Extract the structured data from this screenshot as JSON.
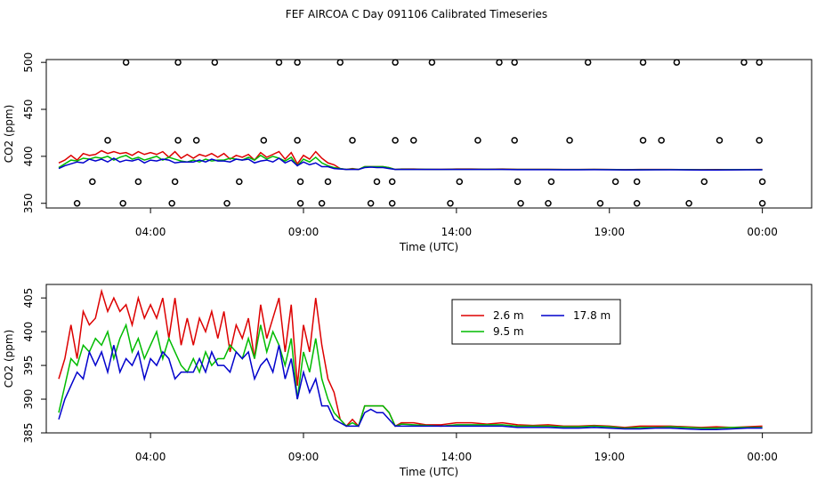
{
  "title": "FEF AIRCOA C  Day 091106  Calibrated Timeseries",
  "chart_data": [
    {
      "type": "scatter",
      "xlabel": "Time (UTC)",
      "ylabel": "CO2 (ppm)",
      "xlim": [
        0,
        24
      ],
      "ylim": [
        345,
        503
      ],
      "x_ticks": [
        3,
        8,
        13,
        18,
        23
      ],
      "x_tick_labels": [
        "04:00",
        "09:00",
        "14:00",
        "19:00",
        "00:00"
      ],
      "y_ticks": [
        350,
        400,
        450,
        500
      ],
      "y_tick_labels": [
        "350",
        "400",
        "450",
        "500"
      ],
      "points": [
        [
          2.2,
          500
        ],
        [
          3.9,
          500
        ],
        [
          5.1,
          500
        ],
        [
          7.2,
          500
        ],
        [
          7.8,
          500
        ],
        [
          9.2,
          500
        ],
        [
          11.0,
          500
        ],
        [
          12.2,
          500
        ],
        [
          14.4,
          500
        ],
        [
          14.9,
          500
        ],
        [
          17.3,
          500
        ],
        [
          19.1,
          500
        ],
        [
          20.2,
          500
        ],
        [
          22.4,
          500
        ],
        [
          22.9,
          500
        ],
        [
          1.6,
          417
        ],
        [
          3.9,
          417
        ],
        [
          4.5,
          417
        ],
        [
          6.7,
          417
        ],
        [
          7.8,
          417
        ],
        [
          9.6,
          417
        ],
        [
          11.0,
          417
        ],
        [
          11.6,
          417
        ],
        [
          13.7,
          417
        ],
        [
          14.9,
          417
        ],
        [
          16.7,
          417
        ],
        [
          19.1,
          417
        ],
        [
          19.7,
          417
        ],
        [
          21.6,
          417
        ],
        [
          22.9,
          417
        ],
        [
          1.1,
          373
        ],
        [
          2.6,
          373
        ],
        [
          3.8,
          373
        ],
        [
          5.9,
          373
        ],
        [
          7.9,
          373
        ],
        [
          8.8,
          373
        ],
        [
          10.4,
          373
        ],
        [
          10.9,
          373
        ],
        [
          13.1,
          373
        ],
        [
          15.0,
          373
        ],
        [
          16.1,
          373
        ],
        [
          18.2,
          373
        ],
        [
          18.9,
          373
        ],
        [
          21.1,
          373
        ],
        [
          23.0,
          373
        ],
        [
          0.6,
          350
        ],
        [
          2.1,
          350
        ],
        [
          3.7,
          350
        ],
        [
          5.5,
          350
        ],
        [
          7.9,
          350
        ],
        [
          8.6,
          350
        ],
        [
          10.2,
          350
        ],
        [
          10.9,
          350
        ],
        [
          12.8,
          350
        ],
        [
          15.1,
          350
        ],
        [
          16.0,
          350
        ],
        [
          17.7,
          350
        ],
        [
          18.9,
          350
        ],
        [
          20.6,
          350
        ],
        [
          23.0,
          350
        ]
      ],
      "series": [
        {
          "name": "2.6 m",
          "color": "#dd0000"
        },
        {
          "name": "9.5 m",
          "color": "#00bb00"
        },
        {
          "name": "17.8 m",
          "color": "#0000cc"
        }
      ]
    },
    {
      "type": "line",
      "xlabel": "Time (UTC)",
      "ylabel": "CO2 (ppm)",
      "xlim": [
        0,
        24
      ],
      "ylim": [
        385,
        407
      ],
      "x_ticks": [
        3,
        8,
        13,
        18,
        23
      ],
      "x_tick_labels": [
        "04:00",
        "09:00",
        "14:00",
        "19:00",
        "00:00"
      ],
      "y_ticks": [
        385,
        390,
        395,
        400,
        405
      ],
      "y_tick_labels": [
        "385",
        "390",
        "395",
        "400",
        "405"
      ],
      "legend_position": "top-center",
      "series": [
        {
          "name": "2.6 m",
          "color": "#dd0000",
          "x": [
            0.0,
            0.2,
            0.4,
            0.6,
            0.8,
            1.0,
            1.2,
            1.4,
            1.6,
            1.8,
            2.0,
            2.2,
            2.4,
            2.6,
            2.8,
            3.0,
            3.2,
            3.4,
            3.6,
            3.8,
            4.0,
            4.2,
            4.4,
            4.6,
            4.8,
            5.0,
            5.2,
            5.4,
            5.6,
            5.8,
            6.0,
            6.2,
            6.4,
            6.6,
            6.8,
            7.0,
            7.2,
            7.4,
            7.6,
            7.8,
            8.0,
            8.2,
            8.4,
            8.6,
            8.8,
            9.0,
            9.2,
            9.4,
            9.6,
            9.8,
            10.0,
            10.2,
            10.4,
            10.6,
            10.8,
            11.0,
            11.2,
            11.6,
            12.0,
            12.5,
            13.0,
            13.5,
            14.0,
            14.5,
            15.0,
            15.5,
            16.0,
            16.5,
            17.0,
            17.5,
            18.0,
            18.5,
            19.0,
            19.5,
            20.0,
            20.5,
            21.0,
            21.5,
            22.0,
            22.5,
            23.0
          ],
          "values": [
            393,
            396,
            401,
            396,
            403,
            401,
            402,
            406,
            403,
            405,
            403,
            404,
            401,
            405,
            402,
            404,
            402,
            405,
            399,
            405,
            398,
            402,
            398,
            402,
            400,
            403,
            399,
            403,
            397,
            401,
            399,
            402,
            396,
            404,
            399,
            402,
            405,
            397,
            404,
            392,
            401,
            397,
            405,
            398,
            393,
            391,
            387,
            386,
            387,
            386,
            389,
            389,
            389,
            389,
            388,
            386,
            386.5,
            386.5,
            386.2,
            386.2,
            386.5,
            386.5,
            386.3,
            386.5,
            386.2,
            386.1,
            386.2,
            386.0,
            386.0,
            386.1,
            386.0,
            385.8,
            386.0,
            386.0,
            386.0,
            385.9,
            385.8,
            385.9,
            385.8,
            385.9,
            386.0
          ]
        },
        {
          "name": "9.5 m",
          "color": "#00bb00",
          "x": [
            0.0,
            0.2,
            0.4,
            0.6,
            0.8,
            1.0,
            1.2,
            1.4,
            1.6,
            1.8,
            2.0,
            2.2,
            2.4,
            2.6,
            2.8,
            3.0,
            3.2,
            3.4,
            3.6,
            3.8,
            4.0,
            4.2,
            4.4,
            4.6,
            4.8,
            5.0,
            5.2,
            5.4,
            5.6,
            5.8,
            6.0,
            6.2,
            6.4,
            6.6,
            6.8,
            7.0,
            7.2,
            7.4,
            7.6,
            7.8,
            8.0,
            8.2,
            8.4,
            8.6,
            8.8,
            9.0,
            9.2,
            9.4,
            9.6,
            9.8,
            10.0,
            10.2,
            10.4,
            10.6,
            10.8,
            11.0,
            11.2,
            11.6,
            12.0,
            12.5,
            13.0,
            13.5,
            14.0,
            14.5,
            15.0,
            15.5,
            16.0,
            16.5,
            17.0,
            17.5,
            18.0,
            18.5,
            19.0,
            19.5,
            20.0,
            20.5,
            21.0,
            21.5,
            22.0,
            22.5,
            23.0
          ],
          "values": [
            388,
            392,
            396,
            395,
            398,
            397,
            399,
            398,
            400,
            396,
            399,
            401,
            397,
            399,
            396,
            398,
            400,
            396,
            399,
            397,
            395,
            394,
            396,
            394,
            397,
            395,
            396,
            396,
            398,
            397,
            396,
            399,
            396,
            401,
            397,
            400,
            398,
            395,
            399,
            390,
            397,
            394,
            399,
            393,
            390,
            388,
            387,
            386,
            386.5,
            386,
            389,
            389,
            389,
            389,
            388,
            386,
            386.3,
            386.2,
            386.1,
            386.0,
            386.2,
            386.2,
            386.2,
            386.2,
            386.0,
            386.0,
            386.0,
            385.9,
            385.9,
            386.0,
            385.9,
            385.7,
            385.8,
            385.8,
            385.9,
            385.8,
            385.7,
            385.7,
            385.8,
            385.8,
            385.8
          ]
        },
        {
          "name": "17.8 m",
          "color": "#0000cc",
          "x": [
            0.0,
            0.2,
            0.4,
            0.6,
            0.8,
            1.0,
            1.2,
            1.4,
            1.6,
            1.8,
            2.0,
            2.2,
            2.4,
            2.6,
            2.8,
            3.0,
            3.2,
            3.4,
            3.6,
            3.8,
            4.0,
            4.2,
            4.4,
            4.6,
            4.8,
            5.0,
            5.2,
            5.4,
            5.6,
            5.8,
            6.0,
            6.2,
            6.4,
            6.6,
            6.8,
            7.0,
            7.2,
            7.4,
            7.6,
            7.8,
            8.0,
            8.2,
            8.4,
            8.6,
            8.8,
            9.0,
            9.2,
            9.4,
            9.6,
            9.8,
            10.0,
            10.2,
            10.4,
            10.6,
            10.8,
            11.0,
            11.2,
            11.6,
            12.0,
            12.5,
            13.0,
            13.5,
            14.0,
            14.5,
            15.0,
            15.5,
            16.0,
            16.5,
            17.0,
            17.5,
            18.0,
            18.5,
            19.0,
            19.5,
            20.0,
            20.5,
            21.0,
            21.5,
            22.0,
            22.5,
            23.0
          ],
          "values": [
            387,
            390,
            392,
            394,
            393,
            397,
            395,
            397,
            394,
            398,
            394,
            396,
            395,
            397,
            393,
            396,
            395,
            397,
            396,
            393,
            394,
            394,
            394,
            396,
            394,
            397,
            395,
            395,
            394,
            397,
            396,
            397,
            393,
            395,
            396,
            394,
            398,
            393,
            396,
            390,
            394,
            391,
            393,
            389,
            389,
            387,
            386.5,
            386,
            386,
            386,
            388,
            388.5,
            388,
            388,
            387,
            386,
            386,
            386,
            386,
            386,
            386,
            386,
            386,
            386,
            385.8,
            385.8,
            385.8,
            385.7,
            385.7,
            385.8,
            385.7,
            385.6,
            385.6,
            385.7,
            385.7,
            385.6,
            385.5,
            385.5,
            385.6,
            385.7,
            385.7
          ]
        }
      ]
    }
  ]
}
